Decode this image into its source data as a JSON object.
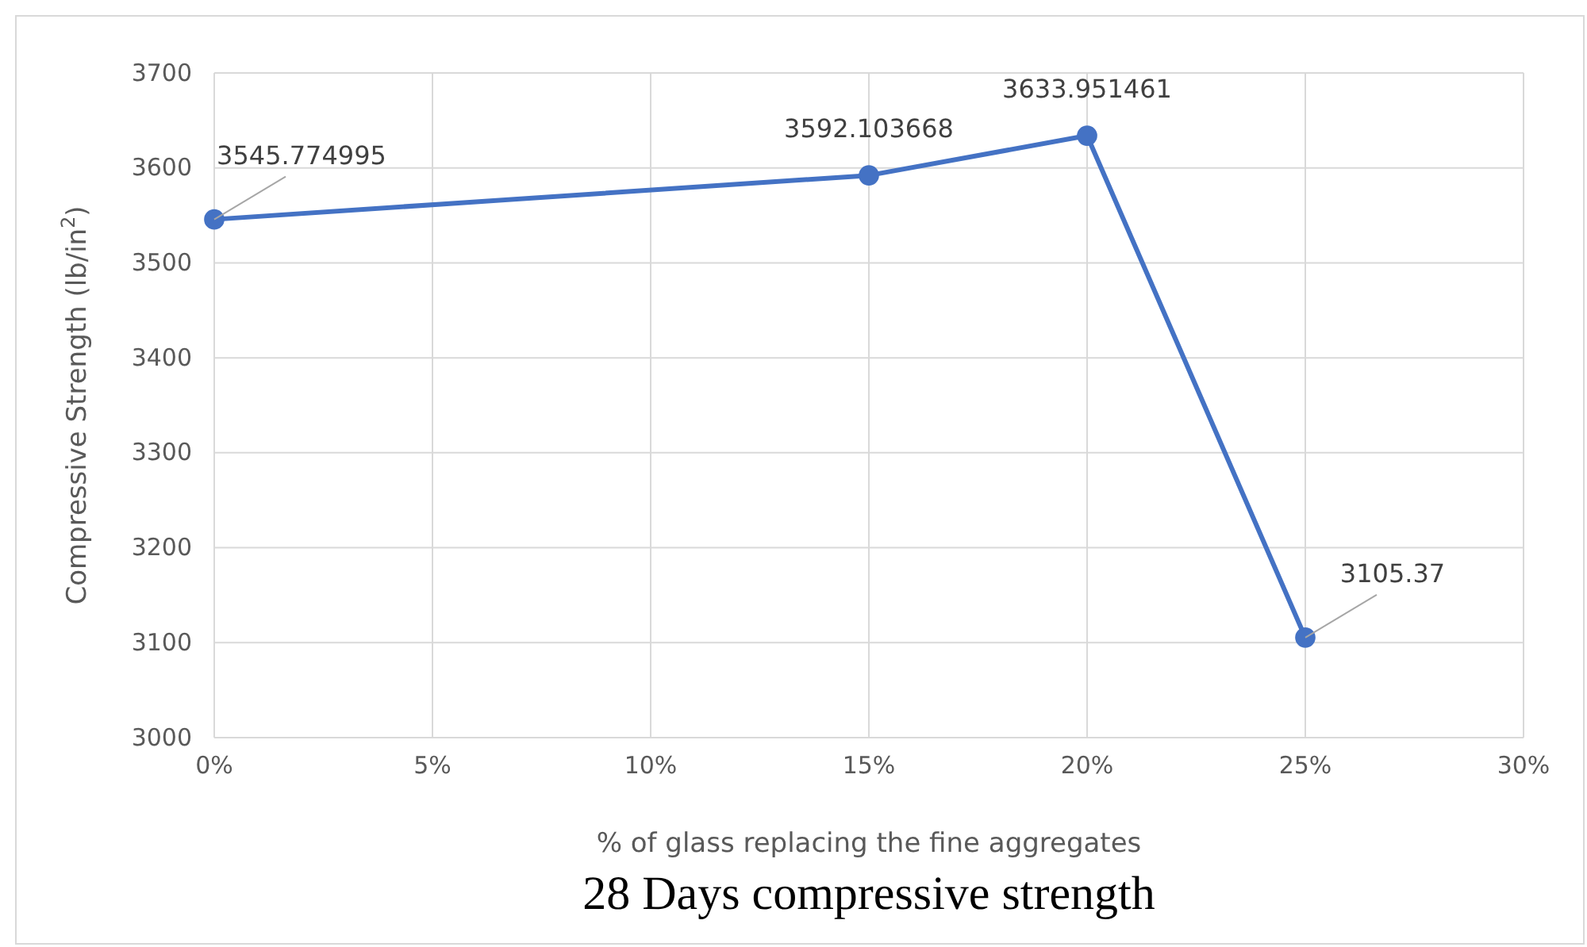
{
  "chart_data": {
    "type": "line",
    "title": "28 Days compressive strength",
    "xlabel": "% of glass replacing the fine aggregates",
    "ylabel": "Compressive Strength (lb/in$^{2}$)",
    "x": [
      0,
      15,
      20,
      25
    ],
    "series": [
      {
        "color": "#4472c4",
        "values": [
          3545.774995,
          3592.103668,
          3633.951461,
          3105.37
        ]
      }
    ],
    "xlim": [
      0,
      30
    ],
    "xticks": [
      {
        "value": 0,
        "label": "0%"
      },
      {
        "value": 5,
        "label": "5%"
      },
      {
        "value": 10,
        "label": "10%"
      },
      {
        "value": 15,
        "label": "15%"
      },
      {
        "value": 20,
        "label": "20%"
      },
      {
        "value": 25,
        "label": "25%"
      },
      {
        "value": 30,
        "label": "30%"
      }
    ],
    "ylim": [
      3000,
      3700
    ],
    "yticks": [
      3000,
      3100,
      3200,
      3300,
      3400,
      3500,
      3600,
      3700
    ],
    "grid": true,
    "marker": "circle",
    "line_style": "solid",
    "data_labels": true
  }
}
